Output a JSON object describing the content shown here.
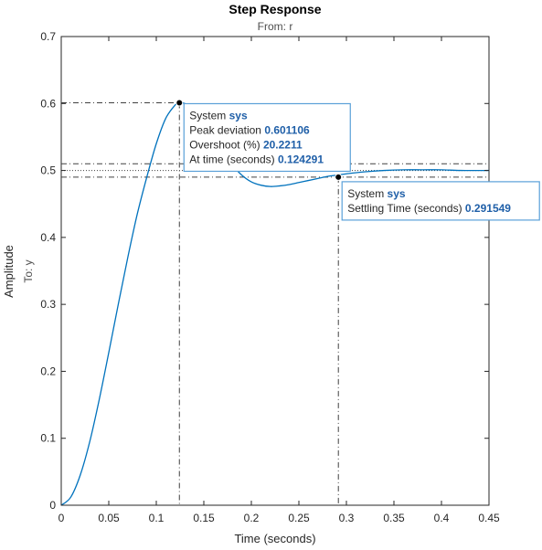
{
  "chart_data": {
    "type": "line",
    "title": "Step Response",
    "subtitle": "From: r",
    "xlabel": "Time (seconds)",
    "ylabel": "Amplitude",
    "ylabel2": "To: y",
    "xlim": [
      0,
      0.45
    ],
    "ylim": [
      0,
      0.7
    ],
    "xticks": [
      0,
      0.05,
      0.1,
      0.15,
      0.2,
      0.25,
      0.3,
      0.35,
      0.4,
      0.45
    ],
    "xtick_labels": [
      "0",
      "0.05",
      "0.1",
      "0.15",
      "0.2",
      "0.25",
      "0.3",
      "0.35",
      "0.4",
      "0.45"
    ],
    "yticks": [
      0,
      0.1,
      0.2,
      0.3,
      0.4,
      0.5,
      0.6,
      0.7
    ],
    "ytick_labels": [
      "0",
      "0.1",
      "0.2",
      "0.3",
      "0.4",
      "0.5",
      "0.6",
      "0.7"
    ],
    "grid": false,
    "line_color": "#0072bd",
    "series": [
      {
        "x": [
          0,
          0.01,
          0.02,
          0.03,
          0.04,
          0.05,
          0.06,
          0.07,
          0.08,
          0.09,
          0.1,
          0.11,
          0.12,
          0.124291,
          0.13,
          0.14,
          0.15,
          0.16,
          0.17,
          0.18,
          0.19,
          0.2,
          0.21,
          0.22,
          0.23,
          0.24,
          0.25,
          0.26,
          0.27,
          0.28,
          0.29,
          0.3,
          0.32,
          0.34,
          0.36,
          0.38,
          0.4,
          0.42,
          0.45
        ],
        "y": [
          0,
          0.012,
          0.045,
          0.095,
          0.158,
          0.228,
          0.3,
          0.37,
          0.435,
          0.49,
          0.54,
          0.578,
          0.598,
          0.601,
          0.6,
          0.591,
          0.572,
          0.549,
          0.527,
          0.508,
          0.493,
          0.483,
          0.478,
          0.476,
          0.477,
          0.479,
          0.482,
          0.485,
          0.488,
          0.491,
          0.493,
          0.495,
          0.498,
          0.5,
          0.501,
          0.501,
          0.501,
          0.5,
          0.5
        ]
      }
    ],
    "final_value": 0.5,
    "settling_band": [
      0.49,
      0.51
    ],
    "peak": {
      "x": 0.124291,
      "y": 0.601106
    },
    "settling": {
      "x": 0.291549,
      "y": 0.49
    },
    "datatips": [
      {
        "rows": [
          {
            "label": "System",
            "value": "sys"
          },
          {
            "label": "Peak  deviation",
            "value": "0.601106"
          },
          {
            "label": "Overshoot  (%)",
            "value": "20.2211"
          },
          {
            "label": "At time  (seconds)",
            "value": "0.124291"
          }
        ]
      },
      {
        "rows": [
          {
            "label": "System",
            "value": "sys"
          },
          {
            "label": "Settling Time  (seconds)",
            "value": "0.291549"
          }
        ]
      }
    ]
  }
}
